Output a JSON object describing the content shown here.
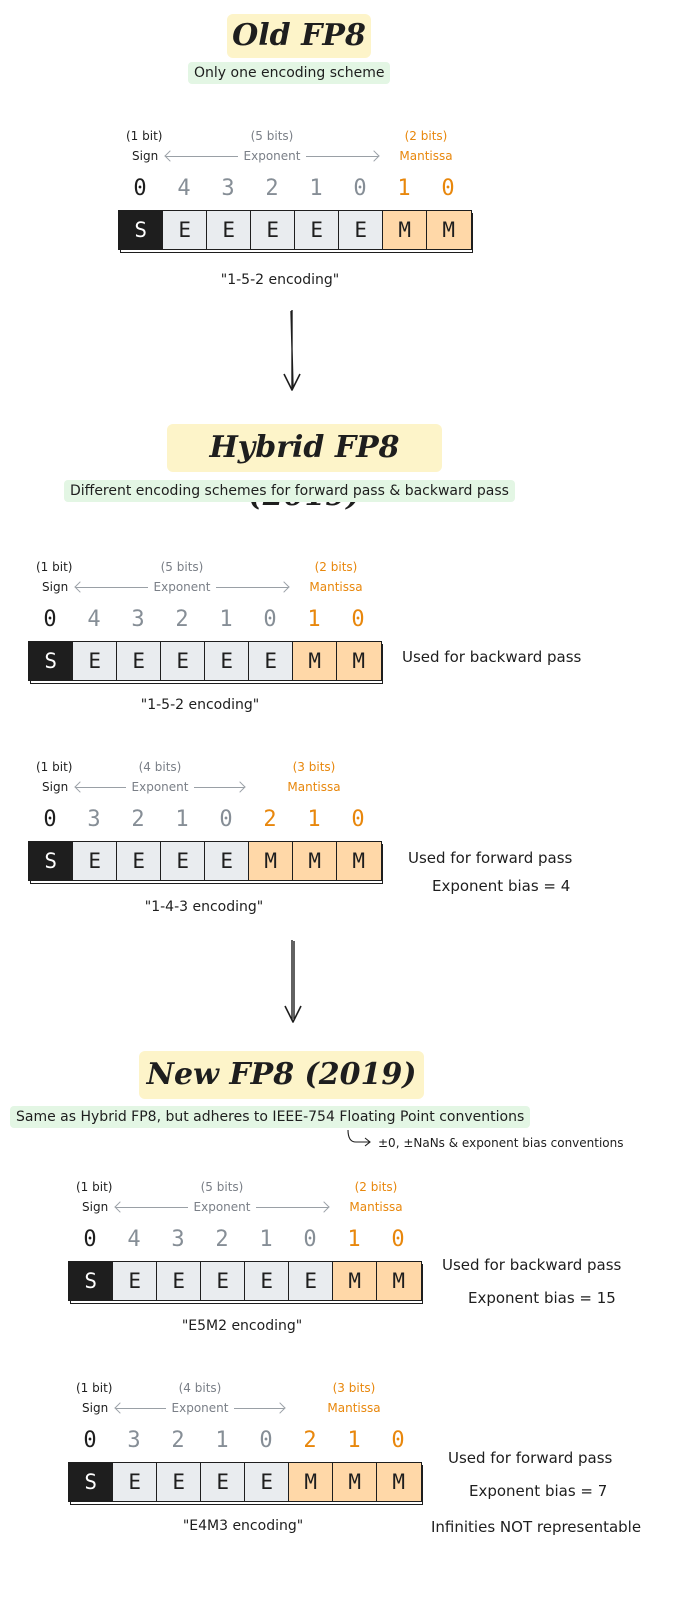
{
  "sections": {
    "old": {
      "title": "Old FP8",
      "subtitle": "Only one encoding scheme",
      "diagram": {
        "sign_bits": "(1 bit)",
        "sign": "Sign",
        "exp_bits": "(5 bits)",
        "exp": "Exponent",
        "man_bits": "(2 bits)",
        "man": "Mantissa",
        "caption": "\"1-5-2 encoding\""
      }
    },
    "hybrid": {
      "title": "Hybrid FP8 (2019)",
      "subtitle": "Different encoding schemes for forward pass & backward pass",
      "d152": {
        "sign_bits": "(1 bit)",
        "sign": "Sign",
        "exp_bits": "(5 bits)",
        "exp": "Exponent",
        "man_bits": "(2 bits)",
        "man": "Mantissa",
        "caption": "\"1-5-2 encoding\"",
        "side1": "Used for backward pass"
      },
      "d143": {
        "sign_bits": "(1 bit)",
        "sign": "Sign",
        "exp_bits": "(4 bits)",
        "exp": "Exponent",
        "man_bits": "(3 bits)",
        "man": "Mantissa",
        "caption": "\"1-4-3 encoding\"",
        "side1": "Used for forward pass",
        "side2": "Exponent bias = 4"
      }
    },
    "new": {
      "title": "New FP8 (2019)",
      "subtitle": "Same as Hybrid FP8, but adheres to IEEE-754 Floating Point conventions",
      "note": "±0, ±NaNs & exponent bias conventions",
      "e5m2": {
        "sign_bits": "(1 bit)",
        "sign": "Sign",
        "exp_bits": "(5 bits)",
        "exp": "Exponent",
        "man_bits": "(2 bits)",
        "man": "Mantissa",
        "caption": "\"E5M2 encoding\"",
        "side1": "Used for backward pass",
        "side2": "Exponent bias = 15"
      },
      "e4m3": {
        "sign_bits": "(1 bit)",
        "sign": "Sign",
        "exp_bits": "(4 bits)",
        "exp": "Exponent",
        "man_bits": "(3 bits)",
        "man": "Mantissa",
        "caption": "\"E4M3 encoding\"",
        "side1": "Used for forward pass",
        "side2": "Exponent bias = 7",
        "side3": "Infinities NOT representable"
      }
    }
  },
  "formats": {
    "e5m2": {
      "sign_index": "0",
      "exp_indices": [
        "4",
        "3",
        "2",
        "1",
        "0"
      ],
      "man_indices": [
        "1",
        "0"
      ],
      "cells": [
        "S",
        "E",
        "E",
        "E",
        "E",
        "E",
        "M",
        "M"
      ]
    },
    "e4m3": {
      "sign_index": "0",
      "exp_indices": [
        "3",
        "2",
        "1",
        "0"
      ],
      "man_indices": [
        "2",
        "1",
        "0"
      ],
      "cells": [
        "S",
        "E",
        "E",
        "E",
        "E",
        "M",
        "M",
        "M"
      ]
    }
  },
  "colors": {
    "sign_fill": "#1e1e1e",
    "exponent_fill": "#e9ecef",
    "mantissa_fill": "#ffd8a8",
    "mantissa_text": "#e8870c",
    "exponent_text": "#868e96",
    "title_highlight": "#fdf4c9",
    "subtitle_highlight": "#e3f6e4"
  }
}
